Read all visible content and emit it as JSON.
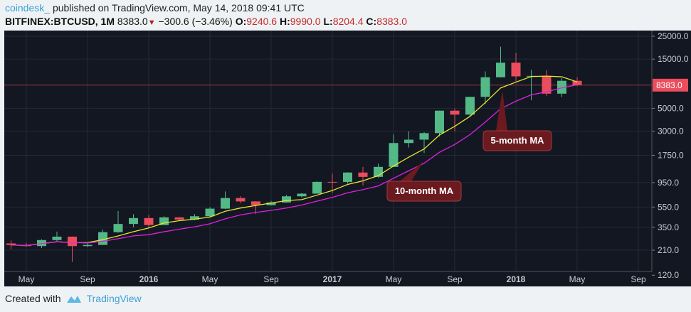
{
  "header": {
    "user": "coindesk_",
    "published": "published on TradingView.com, May 14, 2018 09:41 UTC",
    "symbol": "BITFINEX:BTCUSD, 1M",
    "last": "8383.0",
    "change": "−300.6 (−3.46%)",
    "o_label": "O:",
    "o": "9240.6",
    "h_label": "H:",
    "h": "9990.0",
    "l_label": "L:",
    "l": "8204.4",
    "c_label": "C:",
    "c": "8383.0"
  },
  "footer": {
    "created": "Created with",
    "brand": "TradingView"
  },
  "colors": {
    "up": "#53b987",
    "down": "#eb4d5c",
    "ma5": "#e6e62e",
    "ma10": "#e020e0",
    "last_price": "#eb4d5c"
  },
  "chart_data": {
    "type": "candlestick",
    "scale": "log",
    "grid": true,
    "y_ticks": [
      25000,
      15000,
      5000,
      3000,
      1750,
      950,
      550,
      350,
      210,
      120
    ],
    "y_tick_labels": [
      "25000.0",
      "15000.0",
      "5000.0",
      "3000.0",
      "1750.0",
      "950.0",
      "550.0",
      "350.0",
      "210.0",
      "120.0"
    ],
    "last_price_label": "8383.0",
    "last_price": 8383.0,
    "x_ticks": [
      {
        "label": "May",
        "month": "2015-05"
      },
      {
        "label": "Sep",
        "month": "2015-09"
      },
      {
        "label": "2016",
        "month": "2016-01",
        "bold": true
      },
      {
        "label": "May",
        "month": "2016-05"
      },
      {
        "label": "Sep",
        "month": "2016-09"
      },
      {
        "label": "2017",
        "month": "2017-01",
        "bold": true
      },
      {
        "label": "May",
        "month": "2017-05"
      },
      {
        "label": "Sep",
        "month": "2017-09"
      },
      {
        "label": "2018",
        "month": "2018-01",
        "bold": true
      },
      {
        "label": "May",
        "month": "2018-05"
      },
      {
        "label": "Sep",
        "month": "2018-09"
      }
    ],
    "months": [
      "2015-04",
      "2015-05",
      "2015-06",
      "2015-07",
      "2015-08",
      "2015-09",
      "2015-10",
      "2015-11",
      "2015-12",
      "2016-01",
      "2016-02",
      "2016-03",
      "2016-04",
      "2016-05",
      "2016-06",
      "2016-07",
      "2016-08",
      "2016-09",
      "2016-10",
      "2016-11",
      "2016-12",
      "2017-01",
      "2017-02",
      "2017-03",
      "2017-04",
      "2017-05",
      "2017-06",
      "2017-07",
      "2017-08",
      "2017-09",
      "2017-10",
      "2017-11",
      "2017-12",
      "2018-01",
      "2018-02",
      "2018-03",
      "2018-04",
      "2018-05"
    ],
    "ohlc": [
      [
        244,
        261,
        214,
        236
      ],
      [
        236,
        247,
        228,
        230
      ],
      [
        230,
        268,
        220,
        263
      ],
      [
        263,
        318,
        253,
        284
      ],
      [
        284,
        285,
        162,
        230
      ],
      [
        230,
        244,
        225,
        236
      ],
      [
        236,
        334,
        235,
        314
      ],
      [
        314,
        503,
        310,
        377
      ],
      [
        377,
        469,
        350,
        430
      ],
      [
        430,
        462,
        352,
        368
      ],
      [
        368,
        447,
        368,
        437
      ],
      [
        437,
        440,
        405,
        416
      ],
      [
        416,
        470,
        410,
        448
      ],
      [
        448,
        550,
        440,
        531
      ],
      [
        531,
        780,
        525,
        673
      ],
      [
        673,
        700,
        600,
        624
      ],
      [
        624,
        626,
        470,
        574
      ],
      [
        574,
        630,
        570,
        609
      ],
      [
        609,
        720,
        605,
        699
      ],
      [
        699,
        755,
        680,
        742
      ],
      [
        742,
        975,
        740,
        966
      ],
      [
        966,
        1160,
        750,
        965
      ],
      [
        965,
        1200,
        930,
        1190
      ],
      [
        1190,
        1350,
        890,
        1080
      ],
      [
        1080,
        1450,
        1060,
        1350
      ],
      [
        1350,
        2790,
        1350,
        2300
      ],
      [
        2300,
        2990,
        2080,
        2480
      ],
      [
        2480,
        2930,
        1840,
        2870
      ],
      [
        2870,
        4750,
        2670,
        4740
      ],
      [
        4740,
        4980,
        2980,
        4340
      ],
      [
        4340,
        6470,
        4100,
        6450
      ],
      [
        6450,
        11400,
        5500,
        10000
      ],
      [
        10000,
        19800,
        10000,
        13850
      ],
      [
        13850,
        17200,
        9100,
        10200
      ],
      [
        10200,
        11800,
        6000,
        10300
      ],
      [
        10300,
        11700,
        6600,
        6930
      ],
      [
        6930,
        9770,
        6430,
        9240
      ],
      [
        9240.6,
        9990,
        8204.4,
        8383
      ]
    ],
    "series": [
      {
        "name": "5-month MA",
        "type": "sma",
        "period": 5
      },
      {
        "name": "10-month MA",
        "type": "sma",
        "period": 10
      }
    ],
    "annotations": [
      {
        "text": "5-month MA",
        "month": "2017-11"
      },
      {
        "text": "10-month MA",
        "month": "2017-07"
      }
    ]
  }
}
